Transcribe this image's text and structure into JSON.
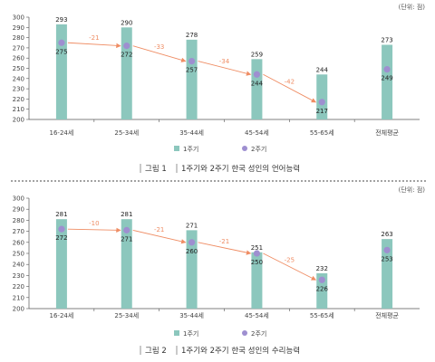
{
  "chart_data": [
    {
      "type": "bar",
      "unit_note": "(단위: 점)",
      "ylim": [
        200,
        300
      ],
      "yticks": [
        200,
        210,
        220,
        230,
        240,
        250,
        260,
        270,
        280,
        290,
        300
      ],
      "categories": [
        "16-24세",
        "25-34세",
        "35-44세",
        "45-54세",
        "55-65세",
        "전체평균"
      ],
      "series": [
        {
          "name": "1주기",
          "values": [
            293,
            290,
            278,
            259,
            244,
            273
          ]
        },
        {
          "name": "2주기",
          "values": [
            275,
            272,
            257,
            244,
            217,
            249
          ]
        }
      ],
      "differences": [
        -21,
        -33,
        -34,
        -42
      ],
      "legend": {
        "placement": "bottom",
        "items": [
          "1주기",
          "2주기"
        ]
      },
      "caption_label": "그림 1",
      "caption_text": "1주기와 2주기 한국 성인의 언어능력",
      "colors": {
        "bar": "#8cc7bd",
        "dot": "#9e8fd0",
        "arrow": "#ef8d64",
        "axis": "#555555"
      }
    },
    {
      "type": "bar",
      "unit_note": "(단위: 점)",
      "ylim": [
        200,
        300
      ],
      "yticks": [
        200,
        210,
        220,
        230,
        240,
        250,
        260,
        270,
        280,
        290,
        300
      ],
      "categories": [
        "16-24세",
        "25-34세",
        "35-44세",
        "45-54세",
        "55-65세",
        "전체평균"
      ],
      "series": [
        {
          "name": "1주기",
          "values": [
            281,
            281,
            271,
            251,
            232,
            263
          ]
        },
        {
          "name": "2주기",
          "values": [
            272,
            271,
            260,
            250,
            226,
            253
          ]
        }
      ],
      "differences": [
        -10,
        -21,
        -21,
        -25
      ],
      "legend": {
        "placement": "bottom",
        "items": [
          "1주기",
          "2주기"
        ]
      },
      "caption_label": "그림 2",
      "caption_text": "1주기와 2주기 한국 성인의 수리능력",
      "colors": {
        "bar": "#8cc7bd",
        "dot": "#9e8fd0",
        "arrow": "#ef8d64",
        "axis": "#555555"
      }
    }
  ]
}
